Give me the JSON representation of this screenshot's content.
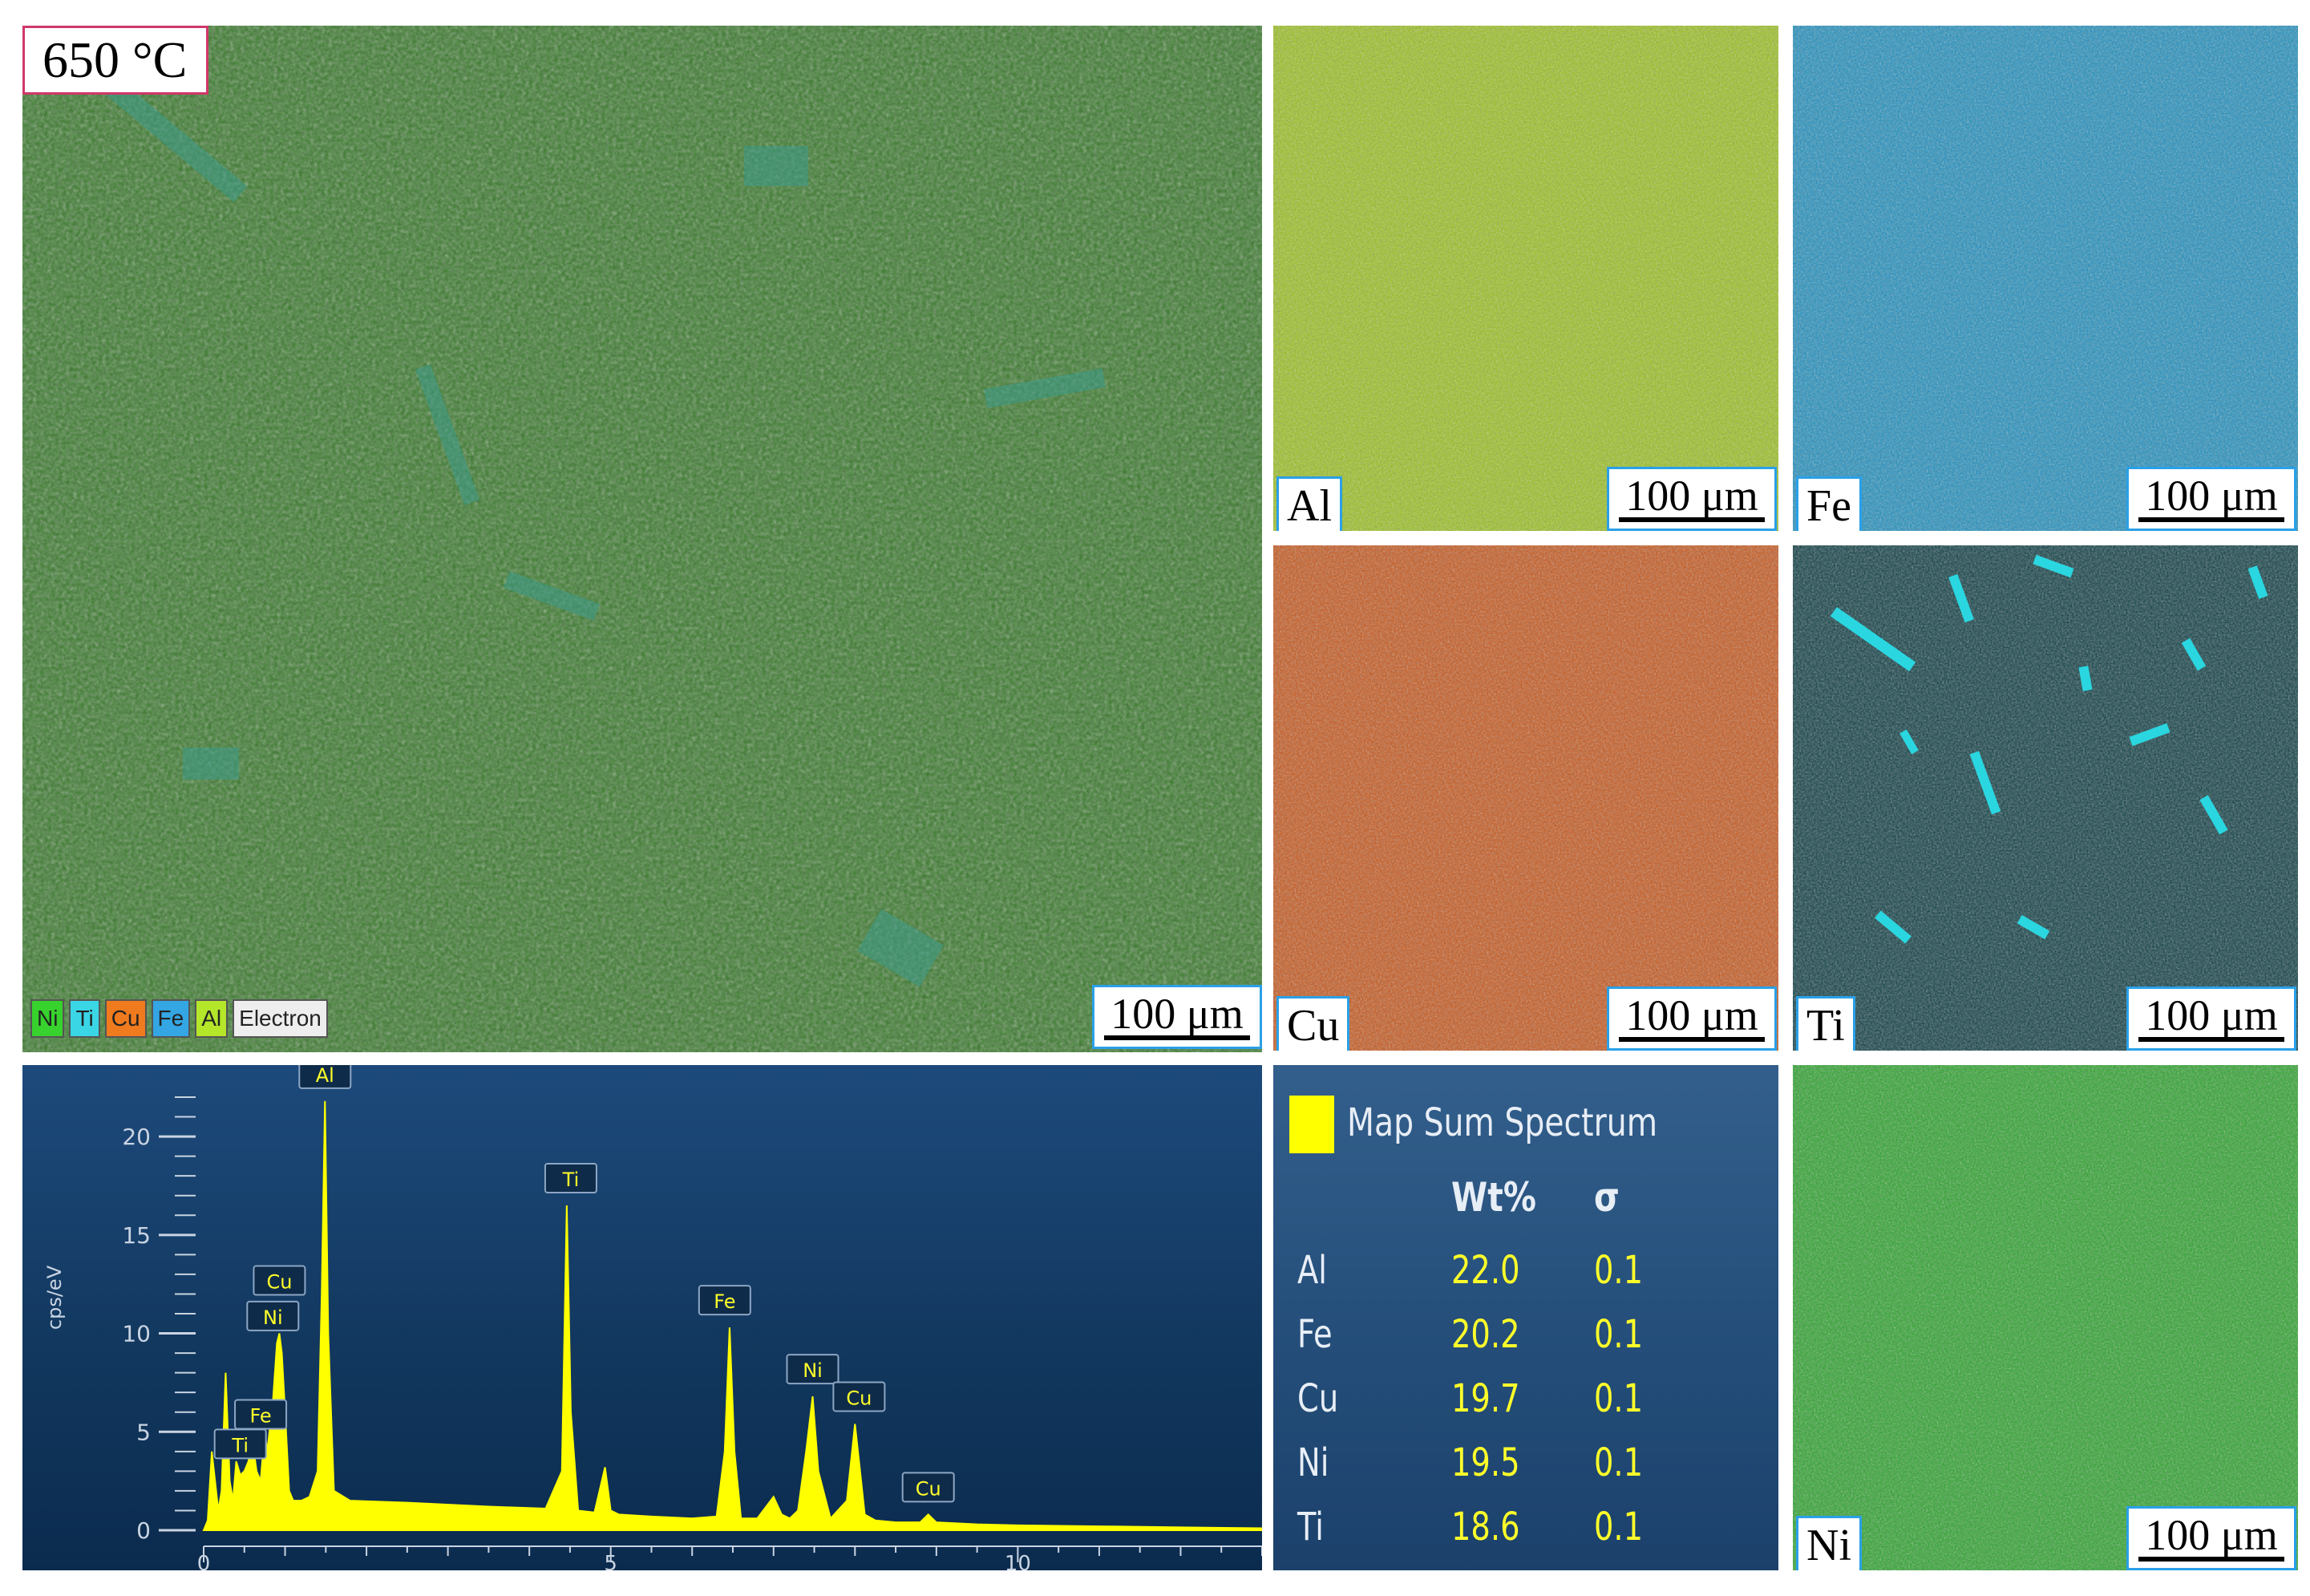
{
  "main_map": {
    "temperature_label": "650 °C",
    "legend": [
      {
        "label": "Ni",
        "color": "#37d22d"
      },
      {
        "label": "Ti",
        "color": "#3ad6e6"
      },
      {
        "label": "Cu",
        "color": "#ef7b1e"
      },
      {
        "label": "Fe",
        "color": "#33a6e3"
      },
      {
        "label": "Al",
        "color": "#b4e62a"
      },
      {
        "label": "Electron",
        "color": "#eeeeee"
      }
    ],
    "scale_bar": "100 μm"
  },
  "element_maps": [
    {
      "element": "Al",
      "scale_bar": "100 μm",
      "color": "#9cc21f"
    },
    {
      "element": "Fe",
      "scale_bar": "100 μm",
      "color": "#1d8fbf"
    },
    {
      "element": "Cu",
      "scale_bar": "100 μm",
      "color": "#c8561a"
    },
    {
      "element": "Ti",
      "scale_bar": "100 μm",
      "color": "#2ad6e0"
    },
    {
      "element": "Ni",
      "scale_bar": "100 μm",
      "color": "#2aa42a"
    }
  ],
  "chart_data": {
    "type": "line",
    "ylabel": "cps/eV",
    "xlabel": "",
    "xlim": [
      0,
      13
    ],
    "ylim": [
      0,
      22
    ],
    "x_ticks": [
      0,
      5,
      10
    ],
    "y_ticks": [
      0,
      5,
      10,
      15,
      20
    ],
    "series": [
      {
        "x": [
          0,
          0.05,
          0.1,
          0.18,
          0.22,
          0.27,
          0.32,
          0.36,
          0.4,
          0.45,
          0.5,
          0.55,
          0.6,
          0.65,
          0.7,
          0.75,
          0.78,
          0.85,
          0.9,
          0.93,
          0.96,
          1.0,
          1.05,
          1.1,
          1.2,
          1.3,
          1.4,
          1.45,
          1.49,
          1.53,
          1.6,
          1.8,
          2.5,
          3.5,
          4.2,
          4.4,
          4.46,
          4.51,
          4.6,
          4.8,
          4.93,
          5.0,
          5.1,
          5.5,
          6.0,
          6.3,
          6.4,
          6.46,
          6.52,
          6.6,
          6.8,
          7.0,
          7.1,
          7.2,
          7.3,
          7.4,
          7.48,
          7.55,
          7.7,
          7.9,
          8.0,
          8.05,
          8.12,
          8.25,
          8.5,
          8.8,
          8.9,
          9.0,
          9.5,
          10,
          11,
          12,
          13
        ],
        "y": [
          0,
          0.5,
          4.0,
          1.0,
          2.0,
          8.0,
          2.5,
          1.5,
          3.5,
          2.8,
          3.0,
          3.5,
          4.5,
          3.0,
          2.5,
          5.0,
          4.0,
          6.5,
          9.5,
          10.0,
          9.0,
          6.0,
          2.0,
          1.5,
          1.5,
          1.7,
          3.0,
          12.0,
          21.8,
          10.0,
          2.0,
          1.5,
          1.4,
          1.2,
          1.1,
          3.0,
          16.5,
          6.0,
          1.0,
          0.9,
          3.2,
          1.0,
          0.8,
          0.7,
          0.6,
          0.7,
          4.0,
          10.3,
          4.0,
          0.6,
          0.6,
          1.7,
          0.8,
          0.6,
          1.0,
          4.0,
          6.8,
          3.0,
          0.6,
          1.5,
          5.4,
          3.5,
          0.8,
          0.5,
          0.4,
          0.4,
          0.8,
          0.4,
          0.3,
          0.25,
          0.2,
          0.15,
          0.1
        ]
      }
    ],
    "peak_labels": [
      {
        "label": "Al",
        "x": 1.49,
        "y": 21.8
      },
      {
        "label": "Ti",
        "x": 4.51,
        "y": 16.5
      },
      {
        "label": "Fe",
        "x": 6.4,
        "y": 10.3
      },
      {
        "label": "Ni",
        "x": 7.48,
        "y": 6.8
      },
      {
        "label": "Cu",
        "x": 8.05,
        "y": 5.4
      },
      {
        "label": "Cu",
        "x": 8.9,
        "y": 0.8
      },
      {
        "label": "Cu",
        "x": 0.93,
        "y": 10.0
      },
      {
        "label": "Ni",
        "x": 0.85,
        "y": 9.5
      },
      {
        "label": "Fe",
        "x": 0.7,
        "y": 4.5
      },
      {
        "label": "Ti",
        "x": 0.45,
        "y": 3.0
      }
    ]
  },
  "spectrum_table": {
    "title": "Map Sum Spectrum",
    "col_wt": "Wt%",
    "col_sigma": "σ",
    "rows": [
      {
        "element": "Al",
        "wt": "22.0",
        "sigma": "0.1"
      },
      {
        "element": "Fe",
        "wt": "20.2",
        "sigma": "0.1"
      },
      {
        "element": "Cu",
        "wt": "19.7",
        "sigma": "0.1"
      },
      {
        "element": "Ni",
        "wt": "19.5",
        "sigma": "0.1"
      },
      {
        "element": "Ti",
        "wt": "18.6",
        "sigma": "0.1"
      }
    ]
  }
}
